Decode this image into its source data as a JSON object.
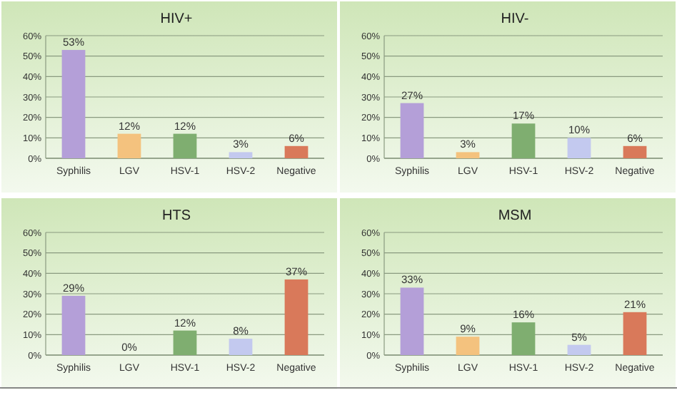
{
  "chart_data": [
    {
      "type": "bar",
      "title": "HIV+",
      "categories": [
        "Syphilis",
        "LGV",
        "HSV-1",
        "HSV-2",
        "Negative"
      ],
      "values": [
        53,
        12,
        12,
        3,
        6
      ],
      "value_labels": [
        "53%",
        "12%",
        "12%",
        "3%",
        "6%"
      ],
      "colors": [
        "#b49fd8",
        "#f4c27e",
        "#7fae70",
        "#c3c9ef",
        "#d9795a"
      ],
      "ylim": [
        0,
        60
      ],
      "yticks": [
        {
          "value": 0,
          "label": "0%"
        },
        {
          "value": 10,
          "label": "10%"
        },
        {
          "value": 20,
          "label": "20%"
        },
        {
          "value": 30,
          "label": "30%"
        },
        {
          "value": 40,
          "label": "40%"
        },
        {
          "value": 50,
          "label": "50%"
        },
        {
          "value": 60,
          "label": "60%"
        }
      ],
      "grid": "y"
    },
    {
      "type": "bar",
      "title": "HIV-",
      "categories": [
        "Syphilis",
        "LGV",
        "HSV-1",
        "HSV-2",
        "Negative"
      ],
      "values": [
        27,
        3,
        17,
        10,
        6
      ],
      "value_labels": [
        "27%",
        "3%",
        "17%",
        "10%",
        "6%"
      ],
      "colors": [
        "#b49fd8",
        "#f4c27e",
        "#7fae70",
        "#c3c9ef",
        "#d9795a"
      ],
      "ylim": [
        0,
        60
      ],
      "yticks": [
        {
          "value": 0,
          "label": "0%"
        },
        {
          "value": 10,
          "label": "10%"
        },
        {
          "value": 20,
          "label": "20%"
        },
        {
          "value": 30,
          "label": "30%"
        },
        {
          "value": 40,
          "label": "40%"
        },
        {
          "value": 50,
          "label": "50%"
        },
        {
          "value": 60,
          "label": "60%"
        }
      ],
      "grid": "y"
    },
    {
      "type": "bar",
      "title": "HTS",
      "categories": [
        "Syphilis",
        "LGV",
        "HSV-1",
        "HSV-2",
        "Negative"
      ],
      "values": [
        29,
        0,
        12,
        8,
        37
      ],
      "value_labels": [
        "29%",
        "0%",
        "12%",
        "8%",
        "37%"
      ],
      "colors": [
        "#b49fd8",
        "#f4c27e",
        "#7fae70",
        "#c3c9ef",
        "#d9795a"
      ],
      "ylim": [
        0,
        60
      ],
      "yticks": [
        {
          "value": 0,
          "label": "0%"
        },
        {
          "value": 10,
          "label": "10%"
        },
        {
          "value": 20,
          "label": "20%"
        },
        {
          "value": 30,
          "label": "30%"
        },
        {
          "value": 40,
          "label": "40%"
        },
        {
          "value": 50,
          "label": "50%"
        },
        {
          "value": 60,
          "label": "60%"
        }
      ],
      "grid": "y"
    },
    {
      "type": "bar",
      "title": "MSM",
      "categories": [
        "Syphilis",
        "LGV",
        "HSV-1",
        "HSV-2",
        "Negative"
      ],
      "values": [
        33,
        9,
        16,
        5,
        21
      ],
      "value_labels": [
        "33%",
        "9%",
        "16%",
        "5%",
        "21%"
      ],
      "colors": [
        "#b49fd8",
        "#f4c27e",
        "#7fae70",
        "#c3c9ef",
        "#d9795a"
      ],
      "ylim": [
        0,
        60
      ],
      "yticks": [
        {
          "value": 0,
          "label": "0%"
        },
        {
          "value": 10,
          "label": "10%"
        },
        {
          "value": 20,
          "label": "20%"
        },
        {
          "value": 30,
          "label": "30%"
        },
        {
          "value": 40,
          "label": "40%"
        },
        {
          "value": 50,
          "label": "50%"
        },
        {
          "value": 60,
          "label": "60%"
        }
      ],
      "grid": "y"
    }
  ]
}
